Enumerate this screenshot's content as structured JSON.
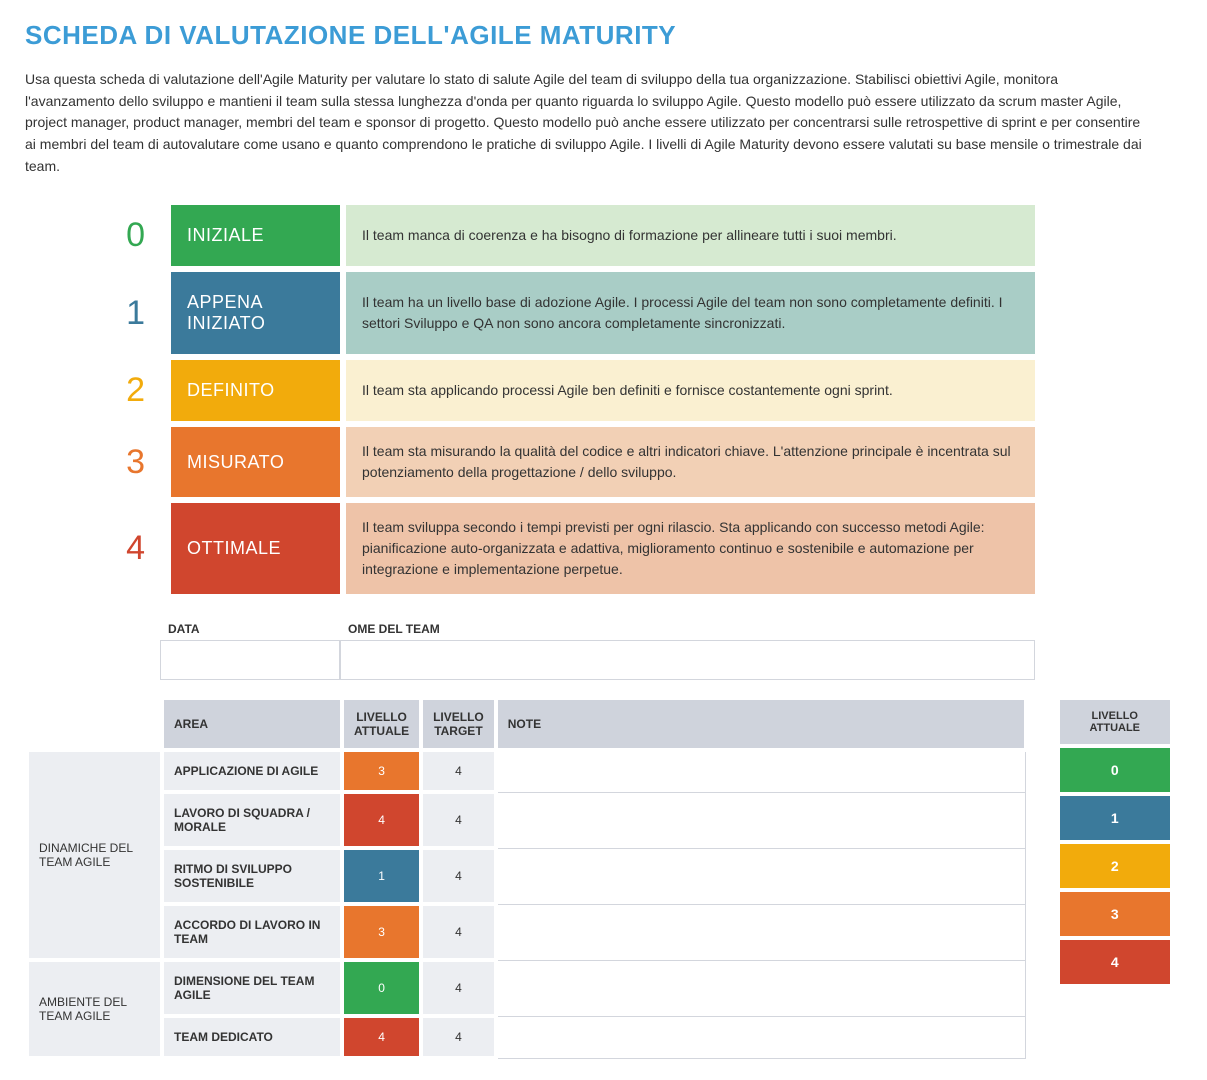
{
  "title": "SCHEDA DI VALUTAZIONE DELL'AGILE MATURITY",
  "intro": "Usa questa scheda di valutazione dell'Agile Maturity per valutare lo stato di salute Agile del team di sviluppo della tua organizzazione. Stabilisci obiettivi Agile, monitora l'avanzamento dello sviluppo e mantieni il team sulla stessa lunghezza d'onda per quanto riguarda lo sviluppo Agile. Questo modello può essere utilizzato da scrum master Agile, project manager, product manager, membri del team e sponsor di progetto. Questo modello può anche essere utilizzato per concentrarsi sulle retrospettive di sprint e per consentire ai membri del team di autovalutare come usano e quanto comprendono le pratiche di sviluppo Agile. I livelli di Agile Maturity devono essere valutati su base mensile o trimestrale dai team.",
  "levels": [
    {
      "num": "0",
      "num_color": "#33a852",
      "label": "INIZIALE",
      "label_bg": "#33a852",
      "desc_bg": "#d6ead1",
      "desc": "Il team manca di coerenza e ha bisogno di formazione per allineare tutti i suoi membri."
    },
    {
      "num": "1",
      "num_color": "#3b7a9b",
      "label": "APPENA INIZIATO",
      "label_bg": "#3b7a9b",
      "desc_bg": "#a9cdc6",
      "desc": "Il team ha un livello base di adozione Agile. I processi Agile del team non sono completamente definiti. I settori Sviluppo e QA non sono ancora completamente sincronizzati."
    },
    {
      "num": "2",
      "num_color": "#f2ab0c",
      "label": "DEFINITO",
      "label_bg": "#f2ab0c",
      "desc_bg": "#faf0d1",
      "desc": "Il team sta applicando processi Agile ben definiti e fornisce costantemente ogni sprint."
    },
    {
      "num": "3",
      "num_color": "#e8762d",
      "label": "MISURATO",
      "label_bg": "#e8762d",
      "desc_bg": "#f2d0b5",
      "desc": "Il team sta misurando la qualità del codice e altri indicatori chiave. L'attenzione principale è incentrata sul potenziamento della progettazione / dello sviluppo."
    },
    {
      "num": "4",
      "num_color": "#d0462e",
      "label": "OTTIMALE",
      "label_bg": "#d0462e",
      "desc_bg": "#eec3a8",
      "desc": "Il team sviluppa secondo i tempi previsti per ogni rilascio. Sta applicando con successo metodi Agile: pianificazione auto-organizzata e adattiva, miglioramento continuo e sostenibile e automazione per integrazione e implementazione perpetue."
    }
  ],
  "meta": {
    "data_label": "DATA",
    "team_label": "OME DEL TEAM",
    "data_value": "",
    "team_value": ""
  },
  "grid_headers": {
    "area": "AREA",
    "current": "LIVELLO ATTUALE",
    "target": "LIVELLO TARGET",
    "note": "NOTE"
  },
  "level_colors": {
    "0": "#33a852",
    "1": "#3b7a9b",
    "2": "#f2ab0c",
    "3": "#e8762d",
    "4": "#d0462e"
  },
  "categories": [
    {
      "name": "DINAMICHE DEL TEAM AGILE",
      "rows": [
        {
          "area": "APPLICAZIONE DI AGILE",
          "current": "3",
          "target": "4",
          "note": ""
        },
        {
          "area": "LAVORO DI SQUADRA / MORALE",
          "current": "4",
          "target": "4",
          "note": ""
        },
        {
          "area": "RITMO DI SVILUPPO SOSTENIBILE",
          "current": "1",
          "target": "4",
          "note": ""
        },
        {
          "area": "ACCORDO DI LAVORO IN TEAM",
          "current": "3",
          "target": "4",
          "note": ""
        }
      ]
    },
    {
      "name": "AMBIENTE DEL TEAM AGILE",
      "rows": [
        {
          "area": "DIMENSIONE DEL TEAM AGILE",
          "current": "0",
          "target": "4",
          "note": ""
        },
        {
          "area": "TEAM DEDICATO",
          "current": "4",
          "target": "4",
          "note": ""
        }
      ]
    }
  ],
  "legend": {
    "header": "LIVELLO ATTUALE",
    "items": [
      {
        "val": "0",
        "bg": "#33a852"
      },
      {
        "val": "1",
        "bg": "#3b7a9b"
      },
      {
        "val": "2",
        "bg": "#f2ab0c"
      },
      {
        "val": "3",
        "bg": "#e8762d"
      },
      {
        "val": "4",
        "bg": "#d0462e"
      }
    ]
  }
}
